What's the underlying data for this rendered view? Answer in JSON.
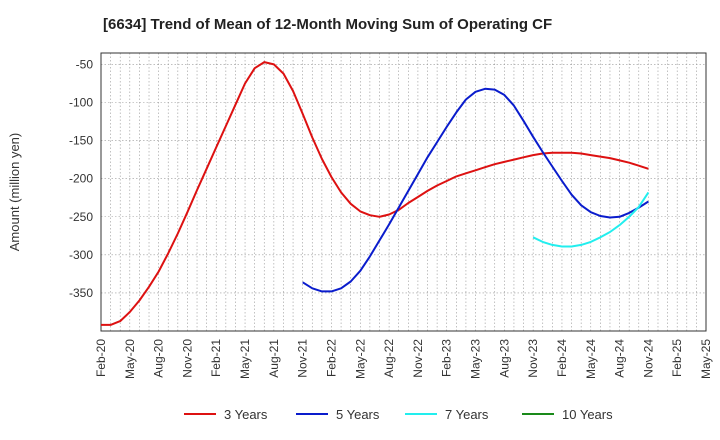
{
  "chart_data": {
    "type": "line",
    "title": "[6634]  Trend of Mean of 12-Month Moving Sum of Operating CF",
    "xlabel": "",
    "ylabel": "Amount (million yen)",
    "x_ticks": [
      "Feb-20",
      "May-20",
      "Aug-20",
      "Nov-20",
      "Feb-21",
      "May-21",
      "Aug-21",
      "Nov-21",
      "Feb-22",
      "May-22",
      "Aug-22",
      "Nov-22",
      "Feb-23",
      "May-23",
      "Aug-23",
      "Nov-23",
      "Feb-24",
      "May-24",
      "Aug-24",
      "Nov-24",
      "Feb-25",
      "May-25"
    ],
    "y_ticks": [
      -50,
      -100,
      -150,
      -200,
      -250,
      -300,
      -350
    ],
    "ylim": [
      -400,
      -35
    ],
    "xlim": [
      0,
      63
    ],
    "grid": true,
    "legend_position": "bottom",
    "series": [
      {
        "name": "3 Years",
        "color": "#dd1111",
        "x": [
          0,
          1,
          2,
          3,
          4,
          5,
          6,
          7,
          8,
          9,
          10,
          11,
          12,
          13,
          14,
          15,
          16,
          17,
          18,
          19,
          20,
          21,
          22,
          23,
          24,
          25,
          26,
          27,
          28,
          29,
          30,
          31,
          32,
          33,
          34,
          35,
          36,
          37,
          38,
          39,
          40,
          41,
          42,
          43,
          44,
          45,
          46,
          47,
          48,
          49,
          50,
          51,
          52,
          53,
          54,
          55,
          56,
          57
        ],
        "values": [
          -392,
          -392,
          -387,
          -375,
          -360,
          -342,
          -322,
          -298,
          -272,
          -244,
          -215,
          -187,
          -159,
          -131,
          -103,
          -75,
          -55,
          -47,
          -50,
          -62,
          -85,
          -115,
          -146,
          -174,
          -198,
          -218,
          -233,
          -243,
          -248,
          -250,
          -247,
          -241,
          -232,
          -224,
          -216,
          -209,
          -203,
          -197,
          -193,
          -189,
          -185,
          -181,
          -178,
          -175,
          -172,
          -169,
          -167,
          -166,
          -166,
          -166,
          -167,
          -169,
          -171,
          -173,
          -176,
          -179,
          -183,
          -187
        ]
      },
      {
        "name": "5 Years",
        "color": "#0a1ccc",
        "x": [
          21,
          22,
          23,
          24,
          25,
          26,
          27,
          28,
          29,
          30,
          31,
          32,
          33,
          34,
          35,
          36,
          37,
          38,
          39,
          40,
          41,
          42,
          43,
          44,
          45,
          46,
          47,
          48,
          49,
          50,
          51,
          52,
          53,
          54,
          55,
          56,
          57
        ],
        "values": [
          -336,
          -344,
          -348,
          -348,
          -344,
          -335,
          -321,
          -302,
          -281,
          -260,
          -238,
          -216,
          -194,
          -172,
          -152,
          -132,
          -113,
          -96,
          -86,
          -82,
          -83,
          -90,
          -104,
          -124,
          -145,
          -165,
          -184,
          -203,
          -221,
          -235,
          -244,
          -249,
          -251,
          -250,
          -245,
          -238,
          -230
        ]
      },
      {
        "name": "7 Years",
        "color": "#22eeee",
        "x": [
          45,
          46,
          47,
          48,
          49,
          50,
          51,
          52,
          53,
          54,
          55,
          56,
          57
        ],
        "values": [
          -277,
          -283,
          -287,
          -289,
          -289,
          -287,
          -283,
          -277,
          -270,
          -261,
          -250,
          -237,
          -218
        ]
      },
      {
        "name": "10 Years",
        "color": "#1a8a1a",
        "x": [],
        "values": []
      }
    ]
  }
}
